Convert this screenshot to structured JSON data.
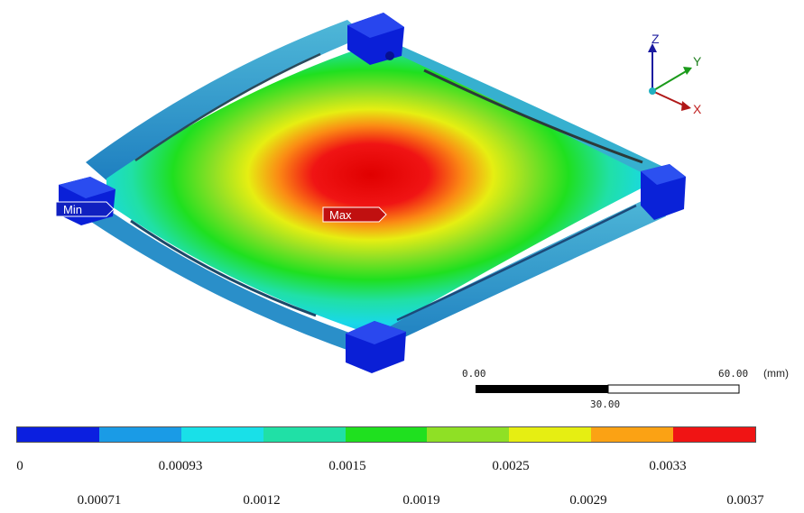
{
  "labels": {
    "min": "Min",
    "max": "Max"
  },
  "triad": {
    "z": "Z",
    "y": "Y",
    "x": "X"
  },
  "scale_bar": {
    "start": "0.00",
    "end": "60.00",
    "mid": "30.00",
    "unit": "(mm)"
  },
  "legend": {
    "colors": [
      "#0b1fe0",
      "#1a9be6",
      "#19e0e8",
      "#20e0a6",
      "#1fe01f",
      "#8fe025",
      "#e6ee12",
      "#fba214",
      "#f01414"
    ],
    "row1": [
      "0",
      "0.00093",
      "0.0015",
      "0.0025",
      "0.0033"
    ],
    "row2": [
      "0.00071",
      "0.0012",
      "0.0019",
      "0.0029",
      "0.0037"
    ]
  }
}
